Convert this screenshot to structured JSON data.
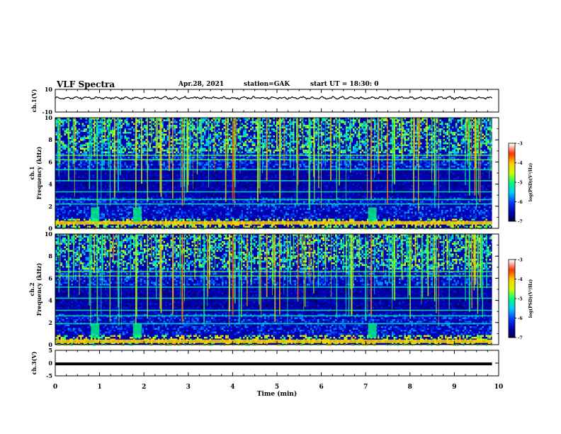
{
  "header": {
    "title": "VLF Spectra",
    "date": "Apr.28, 2021",
    "station": "station=GAK",
    "start_ut": "start UT =  18:30: 0"
  },
  "colors": {
    "trace": "#000000",
    "colormap": [
      "#000040",
      "#0000b0",
      "#0040ff",
      "#00c8ff",
      "#00ff80",
      "#c8ff00",
      "#ffd000",
      "#ff3000",
      "#ffffff"
    ]
  },
  "chart_data": [
    {
      "type": "line",
      "panel": "ch1-waveform",
      "ylabel": "ch.1(V)",
      "ylim": [
        -10,
        10
      ],
      "yticks": [
        "10",
        "-10"
      ],
      "xlim": [
        0,
        10
      ],
      "series": [
        {
          "x": [
            0,
            9.85
          ],
          "approx_level": 2.5,
          "amplitude": 1.5
        }
      ]
    },
    {
      "type": "heatmap",
      "panel": "ch1-spectrogram",
      "ylabel_lines": [
        "ch.1",
        "Frequency (kHz)"
      ],
      "ylim": [
        0,
        10
      ],
      "yticks": [
        "0",
        "2",
        "4",
        "6",
        "8",
        "10"
      ],
      "xlim": [
        0,
        10
      ],
      "colorbar": {
        "label": "log(PSD)(V²/Hz)",
        "ticks": [
          "-3",
          "-4",
          "-5",
          "-6",
          "-7"
        ],
        "range": [
          -7,
          -3
        ]
      },
      "bands_khz": [
        0.5,
        2.2,
        2.6,
        3.3,
        4.3,
        5.3,
        6.2,
        6.6
      ],
      "bursts_min": [
        0.9,
        1.85,
        7.15
      ]
    },
    {
      "type": "heatmap",
      "panel": "ch2-spectrogram",
      "ylabel_lines": [
        "ch.2",
        "Frequency (kHz)"
      ],
      "ylim": [
        0,
        10
      ],
      "yticks": [
        "0",
        "2",
        "4",
        "6",
        "8",
        "10"
      ],
      "xlim": [
        0,
        10
      ],
      "colorbar": {
        "label": "log(PSD)(V²/Hz)",
        "ticks": [
          "-3",
          "-4",
          "-5",
          "-6",
          "-7"
        ],
        "range": [
          -7,
          -3
        ]
      },
      "bands_khz": [
        0.3,
        1.9,
        2.6,
        3.1,
        4.2,
        5.2,
        6.2,
        6.6
      ],
      "bursts_min": [
        0.9,
        1.85,
        7.15
      ]
    },
    {
      "type": "line",
      "panel": "ch3-waveform",
      "ylabel": "ch.3(V)",
      "ylim": [
        -5,
        5
      ],
      "yticks": [
        "5",
        "0",
        "-5"
      ],
      "xlim": [
        0,
        10
      ],
      "series": [
        {
          "x": [
            0,
            9.85
          ],
          "approx_level": -0.3,
          "amplitude": 0
        }
      ]
    }
  ],
  "xaxis": {
    "label": "Time (min)",
    "ticks": [
      "0",
      "1",
      "2",
      "3",
      "4",
      "5",
      "6",
      "7",
      "8",
      "9",
      "10"
    ]
  }
}
